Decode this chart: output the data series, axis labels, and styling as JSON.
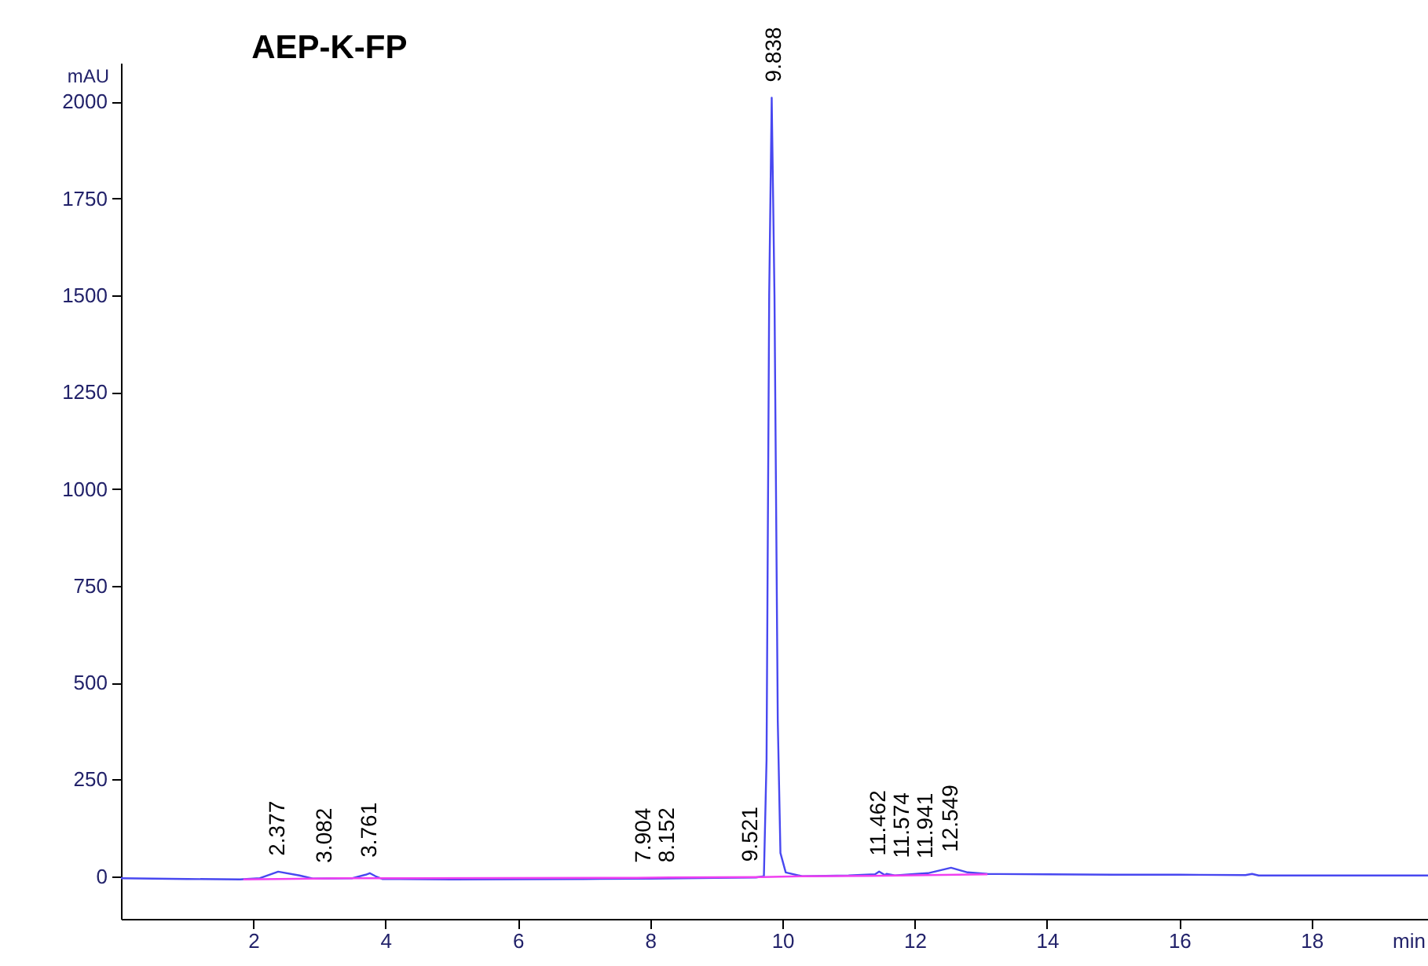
{
  "chart_data": {
    "type": "line",
    "title": "AEP-K-FP",
    "xlabel": "min",
    "ylabel": "mAU",
    "xlim": [
      0,
      19.76
    ],
    "ylim": [
      -110,
      2100
    ],
    "xticks": [
      2,
      4,
      6,
      8,
      10,
      12,
      14,
      16,
      18
    ],
    "yticks": [
      0,
      250,
      500,
      750,
      1000,
      1250,
      1500,
      1750,
      2000
    ],
    "grid": false,
    "marker": "none",
    "line_style": "solid",
    "series": [
      {
        "color": "#4848f0",
        "x": [
          0,
          1,
          1.8,
          2.1,
          2.377,
          2.7,
          2.9,
          3.5,
          3.7,
          3.761,
          3.85,
          3.95,
          5,
          7,
          8,
          9,
          9.6,
          9.72,
          9.76,
          9.8,
          9.838,
          9.88,
          9.93,
          9.97,
          10.05,
          10.3,
          11,
          11.4,
          11.462,
          11.55,
          11.574,
          11.7,
          11.941,
          12.2,
          12.549,
          12.8,
          13.1,
          14,
          15,
          16,
          17,
          17.1,
          17.2,
          19.76
        ],
        "values": [
          -5,
          -7,
          -8,
          -5,
          12,
          2,
          -6,
          -5,
          4,
          8,
          0,
          -7,
          -8,
          -7,
          -6,
          -4,
          -3,
          0,
          300,
          1500,
          2010,
          1500,
          400,
          60,
          10,
          0,
          2,
          5,
          12,
          3,
          6,
          2,
          5,
          8,
          22,
          10,
          6,
          5,
          4,
          4,
          3,
          6,
          2,
          2
        ]
      },
      {
        "color": "#f040f0",
        "x": [
          1.85,
          2.9,
          3.3,
          3.95,
          7.8,
          8.3,
          9.7,
          10.3,
          11.3,
          11.8,
          12.2,
          13.1
        ],
        "values": [
          -8,
          -6,
          -5,
          -5,
          -4,
          -3,
          -2,
          0,
          1,
          2,
          3,
          5
        ]
      }
    ],
    "annotations": [
      {
        "text": "2.377",
        "x": 2.377,
        "y": 12
      },
      {
        "text": "3.082",
        "x": 3.082,
        "y": -6
      },
      {
        "text": "3.761",
        "x": 3.761,
        "y": 8
      },
      {
        "text": "7.904",
        "x": 7.904,
        "y": -6
      },
      {
        "text": "8.152",
        "x": 8.152,
        "y": -5
      },
      {
        "text": "9.521",
        "x": 9.521,
        "y": -3
      },
      {
        "text": "9.838",
        "x": 9.838,
        "y": 2010
      },
      {
        "text": "11.462",
        "x": 11.462,
        "y": 12
      },
      {
        "text": "11.574",
        "x": 11.574,
        "y": 6
      },
      {
        "text": "11.941",
        "x": 11.941,
        "y": 5
      },
      {
        "text": "12.549",
        "x": 12.549,
        "y": 22
      }
    ]
  }
}
